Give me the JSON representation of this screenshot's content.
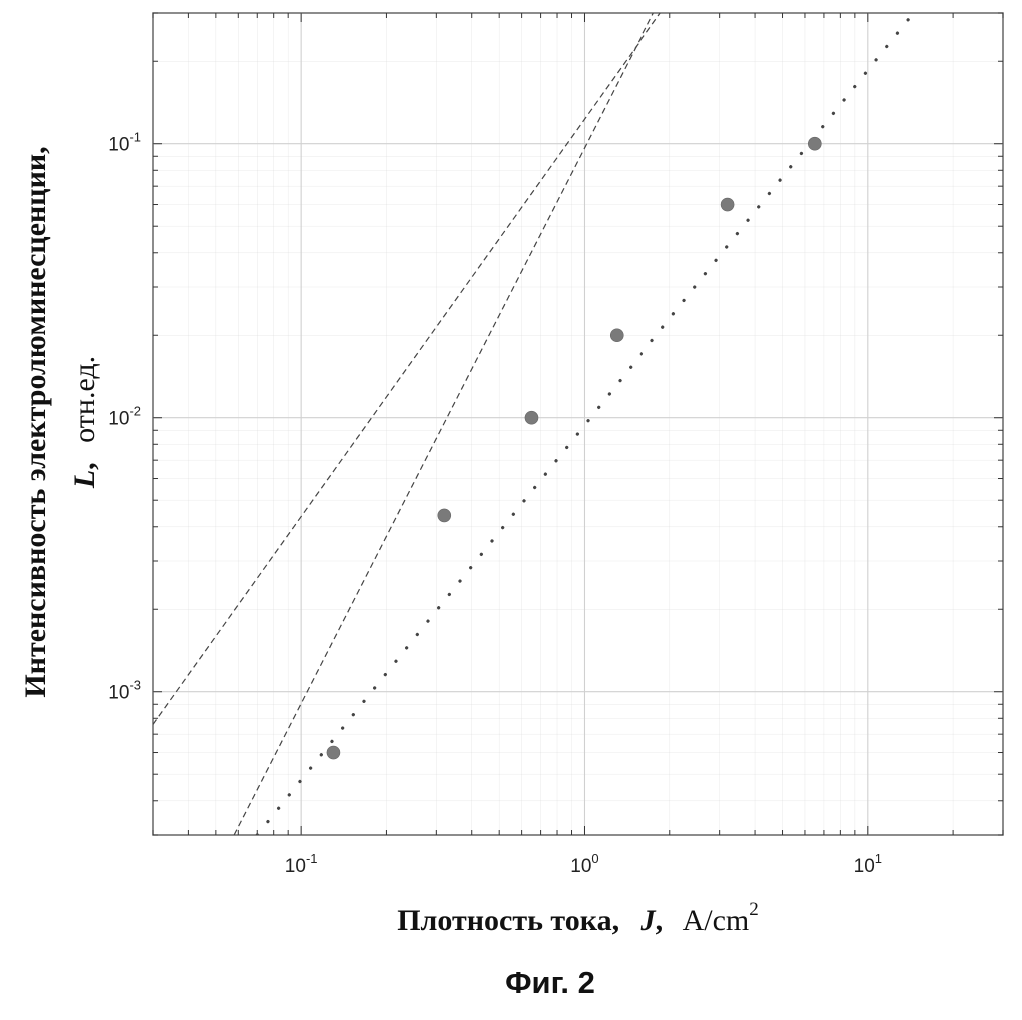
{
  "chart_data": {
    "type": "scatter",
    "x_scale": "log",
    "y_scale": "log",
    "xlim": [
      0.03,
      30
    ],
    "ylim": [
      0.0003,
      0.3
    ],
    "grid": true,
    "xlabel": {
      "text": "Плотность тока,",
      "symbol": "J",
      "sep": ",",
      "unit": "A/cm",
      "unit_sup": "2"
    },
    "ylabel": {
      "text": "Интенсивность электролюминесценции,",
      "symbol": "L",
      "sep": ",",
      "unit": "отн.ед."
    },
    "caption": "Фиг. 2",
    "x_ticks": [
      {
        "value": 0.1,
        "base": "10",
        "exp": "-1"
      },
      {
        "value": 1,
        "base": "10",
        "exp": "0"
      },
      {
        "value": 10,
        "base": "10",
        "exp": "1"
      }
    ],
    "y_ticks": [
      {
        "value": 0.001,
        "base": "10",
        "exp": "-3"
      },
      {
        "value": 0.01,
        "base": "10",
        "exp": "-2"
      },
      {
        "value": 0.1,
        "base": "10",
        "exp": "-1"
      }
    ],
    "points": [
      {
        "x": 0.13,
        "y": 0.0006
      },
      {
        "x": 0.32,
        "y": 0.0044
      },
      {
        "x": 0.65,
        "y": 0.01
      },
      {
        "x": 1.3,
        "y": 0.02
      },
      {
        "x": 3.2,
        "y": 0.06
      },
      {
        "x": 6.5,
        "y": 0.1
      }
    ],
    "fit_lines": [
      {
        "style": "dashed",
        "x": [
          0.03,
          1.85
        ],
        "y": [
          0.00076,
          0.3
        ]
      },
      {
        "style": "dashed",
        "x": [
          0.058,
          1.75
        ],
        "y": [
          0.0003,
          0.3
        ]
      },
      {
        "style": "dotted",
        "x": [
          0.07,
          14.5
        ],
        "y": [
          0.0003,
          0.3
        ]
      }
    ],
    "colors": {
      "marker": "#7a7a7a",
      "line": "#444444",
      "grid": "#d0d0d0",
      "axis": "#333333"
    }
  }
}
